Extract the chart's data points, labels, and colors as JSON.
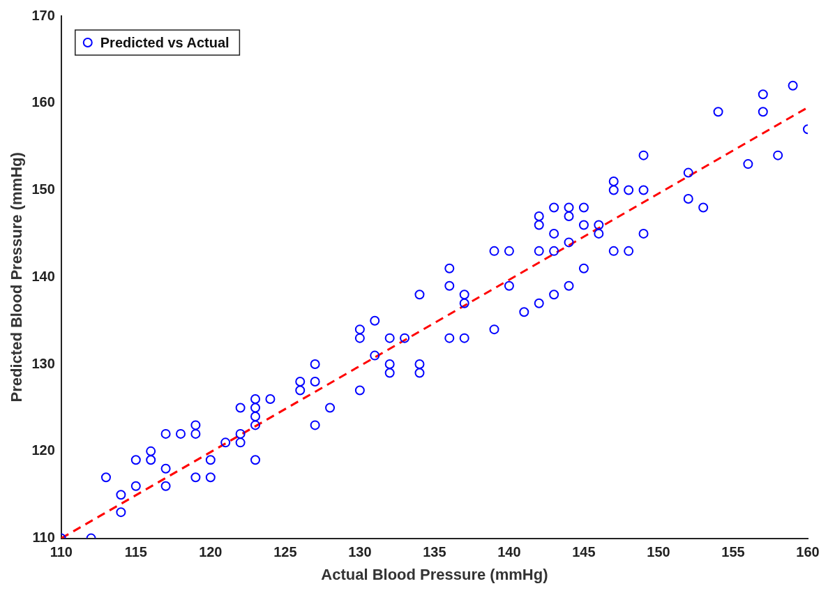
{
  "chart_data": {
    "type": "scatter",
    "xlabel": "Actual Blood Pressure (mmHg)",
    "ylabel": "Predicted Blood Pressure (mmHg)",
    "xlim": [
      110,
      160
    ],
    "xticks": [
      110,
      115,
      120,
      125,
      130,
      135,
      140,
      145,
      150,
      155,
      160
    ],
    "ylim": [
      110,
      170
    ],
    "yticks": [
      110,
      120,
      130,
      140,
      150,
      160,
      170
    ],
    "grid": false,
    "legend": "top left",
    "marker": "circle",
    "series": [
      {
        "name": "Predicted vs Actual",
        "type": "scatter",
        "color": "#0000ff",
        "x": [
          110,
          112,
          113,
          114,
          114,
          115,
          115,
          116,
          116,
          117,
          117,
          117,
          118,
          119,
          119,
          119,
          120,
          120,
          121,
          122,
          122,
          122,
          123,
          123,
          123,
          123,
          123,
          124,
          126,
          126,
          127,
          127,
          127,
          128,
          130,
          130,
          130,
          131,
          131,
          132,
          132,
          132,
          133,
          134,
          134,
          134,
          136,
          136,
          136,
          137,
          137,
          137,
          139,
          139,
          140,
          140,
          141,
          142,
          142,
          142,
          142,
          143,
          143,
          143,
          143,
          144,
          144,
          144,
          144,
          145,
          145,
          145,
          146,
          146,
          147,
          147,
          147,
          148,
          148,
          149,
          149,
          149,
          152,
          152,
          153,
          154,
          156,
          157,
          157,
          158,
          159,
          160
        ],
        "values": [
          110,
          110,
          117,
          115,
          113,
          119,
          116,
          120,
          119,
          122,
          118,
          116,
          122,
          123,
          122,
          117,
          119,
          117,
          121,
          125,
          122,
          121,
          126,
          125,
          124,
          123,
          119,
          126,
          128,
          127,
          130,
          128,
          123,
          125,
          134,
          133,
          127,
          135,
          131,
          133,
          130,
          129,
          133,
          138,
          130,
          129,
          141,
          139,
          133,
          138,
          137,
          133,
          143,
          134,
          143,
          139,
          136,
          147,
          146,
          143,
          137,
          148,
          145,
          143,
          138,
          148,
          147,
          144,
          139,
          148,
          146,
          141,
          146,
          145,
          151,
          150,
          143,
          150,
          143,
          154,
          150,
          145,
          152,
          149,
          148,
          159,
          153,
          161,
          159,
          154,
          162,
          157
        ]
      },
      {
        "type": "line",
        "color": "#ff0000",
        "line_style": "dashed",
        "marker": "none",
        "x": [
          110,
          160
        ],
        "values": [
          110,
          159.5
        ]
      }
    ]
  }
}
